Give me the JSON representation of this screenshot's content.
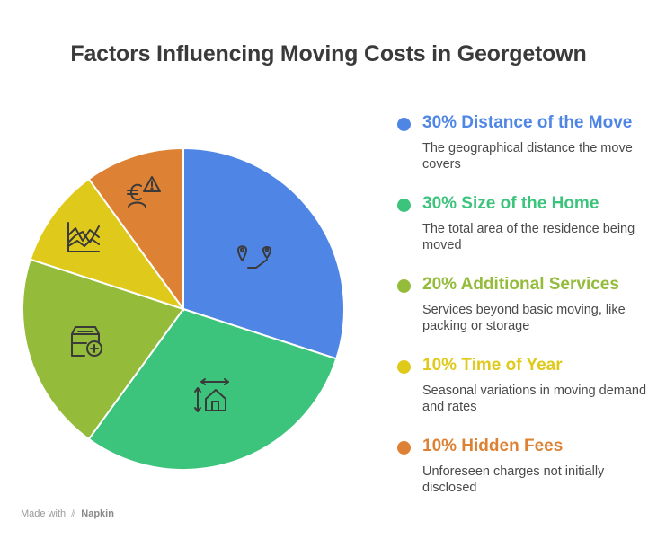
{
  "chart_data": {
    "type": "pie",
    "title": "Factors Influencing Moving Costs in Georgetown",
    "slices": [
      {
        "label": "Distance of the Move",
        "percent_label": "30%",
        "value": 30,
        "description": "The geographical distance the move covers",
        "color": "#4f86e6",
        "icon": "map-pins-icon"
      },
      {
        "label": "Size of the Home",
        "percent_label": "30%",
        "value": 30,
        "description": "The total area of the residence being moved",
        "color": "#3cc47c",
        "icon": "house-measure-icon"
      },
      {
        "label": "Additional Services",
        "percent_label": "20%",
        "value": 20,
        "description": "Services beyond basic moving, like packing or storage",
        "color": "#94bb3a",
        "icon": "box-plus-icon"
      },
      {
        "label": "Time of Year",
        "percent_label": "10%",
        "value": 10,
        "description": "Seasonal variations in moving demand and rates",
        "color": "#dfc91a",
        "icon": "fluctuating-chart-icon"
      },
      {
        "label": "Hidden Fees",
        "percent_label": "10%",
        "value": 10,
        "description": "Unforeseen charges not initially disclosed",
        "color": "#dd8234",
        "icon": "euro-warning-icon"
      }
    ]
  },
  "footer": {
    "made_with": "Made with",
    "brand": "Napkin",
    "icon": "napkin-logo-icon"
  }
}
